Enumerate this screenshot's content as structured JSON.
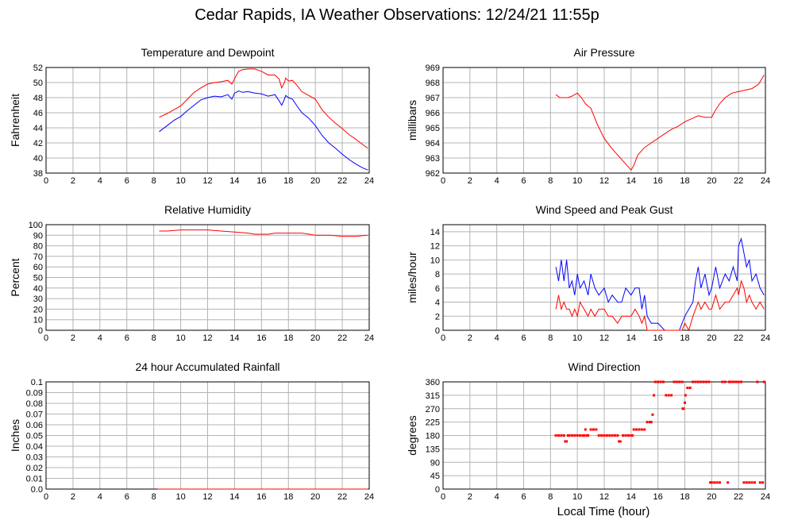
{
  "title": "Cedar Rapids, IA Weather Observations: 12/24/21 11:55p",
  "xlabel": "Local Time (hour)",
  "chart_data": [
    {
      "type": "line",
      "title": "Temperature and Dewpoint",
      "ylabel": "Fahrenheit",
      "xlim": [
        0,
        24
      ],
      "ylim": [
        38,
        52
      ],
      "xticks": [
        0,
        2,
        4,
        6,
        8,
        10,
        12,
        14,
        16,
        18,
        20,
        22,
        24
      ],
      "yticks": [
        38,
        40,
        42,
        44,
        46,
        48,
        50,
        52
      ],
      "series": [
        {
          "color": "#ff0000",
          "x": [
            8.4,
            9,
            9.5,
            10,
            10.5,
            11,
            11.5,
            12,
            12.5,
            13,
            13.5,
            13.8,
            14,
            14.3,
            14.6,
            15,
            15.5,
            16,
            16.5,
            17,
            17.3,
            17.5,
            17.7,
            17.8,
            18,
            18.3,
            18.6,
            19,
            19.5,
            20,
            20.5,
            21,
            21.5,
            22,
            22.5,
            23,
            23.5,
            23.9
          ],
          "y": [
            45.4,
            45.9,
            46.4,
            46.9,
            47.8,
            48.7,
            49.3,
            49.8,
            50.0,
            50.1,
            50.3,
            49.8,
            50.5,
            51.5,
            51.7,
            51.8,
            51.8,
            51.5,
            51.0,
            51.0,
            50.5,
            49.3,
            50.0,
            50.6,
            50.2,
            50.3,
            49.7,
            48.8,
            48.3,
            47.8,
            46.4,
            45.4,
            44.6,
            43.9,
            43.1,
            42.5,
            41.8,
            41.3
          ]
        },
        {
          "color": "#0000ff",
          "x": [
            8.4,
            9,
            9.5,
            10,
            10.5,
            11,
            11.5,
            12,
            12.5,
            13,
            13.5,
            13.8,
            14,
            14.3,
            14.6,
            15,
            15.5,
            16,
            16.5,
            17,
            17.3,
            17.5,
            17.7,
            17.8,
            18,
            18.3,
            18.6,
            19,
            19.5,
            20,
            20.5,
            21,
            21.5,
            22,
            22.5,
            23,
            23.5,
            23.9
          ],
          "y": [
            43.5,
            44.3,
            45.0,
            45.5,
            46.3,
            47.0,
            47.7,
            48.0,
            48.2,
            48.1,
            48.4,
            47.8,
            48.6,
            48.9,
            48.7,
            48.8,
            48.6,
            48.5,
            48.2,
            48.4,
            47.6,
            47.0,
            47.8,
            48.3,
            48.0,
            47.8,
            47.0,
            46.0,
            45.3,
            44.3,
            43.0,
            42.0,
            41.3,
            40.5,
            39.8,
            39.2,
            38.7,
            38.4
          ]
        }
      ]
    },
    {
      "type": "line",
      "title": "Air Pressure",
      "ylabel": "millibars",
      "xlim": [
        0,
        24
      ],
      "ylim": [
        962,
        969
      ],
      "xticks": [
        0,
        2,
        4,
        6,
        8,
        10,
        12,
        14,
        16,
        18,
        20,
        22,
        24
      ],
      "yticks": [
        962,
        963,
        964,
        965,
        966,
        967,
        968,
        969
      ],
      "series": [
        {
          "color": "#ff0000",
          "x": [
            8.4,
            8.7,
            9,
            9.3,
            9.6,
            10,
            10.3,
            10.6,
            11,
            11.5,
            12,
            12.5,
            13,
            13.5,
            14,
            14.2,
            14.5,
            15,
            15.5,
            16,
            16.5,
            17,
            17.5,
            18,
            18.5,
            19,
            19.5,
            20,
            20.3,
            20.6,
            21,
            21.5,
            22,
            22.5,
            23,
            23.5,
            23.9
          ],
          "y": [
            967.2,
            967.0,
            967.0,
            967.0,
            967.1,
            967.3,
            967.0,
            966.6,
            966.3,
            965.2,
            964.3,
            963.7,
            963.2,
            962.7,
            962.2,
            962.5,
            963.2,
            963.7,
            964.0,
            964.3,
            964.6,
            964.9,
            965.1,
            965.4,
            965.6,
            965.8,
            965.7,
            965.7,
            966.2,
            966.6,
            967.0,
            967.3,
            967.4,
            967.5,
            967.6,
            967.9,
            968.5
          ]
        }
      ]
    },
    {
      "type": "line",
      "title": "Relative Humidity",
      "ylabel": "Percent",
      "xlim": [
        0,
        24
      ],
      "ylim": [
        0,
        100
      ],
      "xticks": [
        0,
        2,
        4,
        6,
        8,
        10,
        12,
        14,
        16,
        18,
        20,
        22,
        24
      ],
      "yticks": [
        0,
        10,
        20,
        30,
        40,
        50,
        60,
        70,
        80,
        90,
        100
      ],
      "series": [
        {
          "color": "#ff0000",
          "x": [
            8.4,
            9,
            10,
            11,
            12,
            13,
            14,
            15,
            15.5,
            16,
            16.5,
            17,
            18,
            19,
            20,
            21,
            22,
            22.5,
            23,
            23.9
          ],
          "y": [
            94,
            94,
            95,
            95,
            95,
            94,
            93,
            92,
            91,
            91,
            91,
            92,
            92,
            92,
            90,
            90,
            89,
            89,
            89,
            90
          ]
        }
      ]
    },
    {
      "type": "line",
      "title": "Wind Speed and Peak Gust",
      "ylabel": "miles/hour",
      "xlim": [
        0,
        24
      ],
      "ylim": [
        0,
        15
      ],
      "xticks": [
        0,
        2,
        4,
        6,
        8,
        10,
        12,
        14,
        16,
        18,
        20,
        22,
        24
      ],
      "yticks": [
        0,
        2,
        4,
        6,
        8,
        10,
        12,
        14
      ],
      "series": [
        {
          "color": "#0000ff",
          "x": [
            8.4,
            8.6,
            8.8,
            9,
            9.2,
            9.4,
            9.6,
            9.8,
            10,
            10.2,
            10.5,
            10.8,
            11,
            11.3,
            11.6,
            12,
            12.3,
            12.6,
            13,
            13.3,
            13.6,
            14,
            14.3,
            14.6,
            14.8,
            15,
            15.2,
            15.5,
            16,
            16.5,
            17,
            17.3,
            17.6,
            17.8,
            18,
            18.3,
            18.6,
            18.8,
            19,
            19.2,
            19.5,
            19.8,
            20,
            20.3,
            20.6,
            21,
            21.3,
            21.6,
            21.9,
            22,
            22.2,
            22.4,
            22.6,
            22.8,
            23,
            23.3,
            23.6,
            23.9
          ],
          "y": [
            9,
            7,
            10,
            7,
            10,
            6,
            7,
            5,
            8,
            6,
            7,
            5,
            8,
            6,
            5,
            6,
            4,
            5,
            4,
            4,
            6,
            5,
            6,
            6,
            3,
            5,
            2,
            1,
            1,
            0,
            0,
            0,
            0,
            1,
            2,
            3,
            4,
            7,
            9,
            6,
            8,
            5,
            6,
            9,
            6,
            8,
            7,
            9,
            7,
            12,
            13,
            11,
            9,
            10,
            7,
            8,
            6,
            5
          ]
        },
        {
          "color": "#ff0000",
          "x": [
            8.4,
            8.6,
            8.8,
            9,
            9.2,
            9.4,
            9.6,
            9.8,
            10,
            10.2,
            10.5,
            10.8,
            11,
            11.3,
            11.6,
            12,
            12.3,
            12.6,
            13,
            13.3,
            13.6,
            14,
            14.3,
            14.6,
            14.8,
            15,
            15.2,
            15.5,
            16,
            16.5,
            17,
            17.3,
            17.6,
            17.8,
            18,
            18.3,
            18.6,
            18.8,
            19,
            19.2,
            19.5,
            19.8,
            20,
            20.3,
            20.6,
            21,
            21.3,
            21.6,
            21.9,
            22,
            22.2,
            22.4,
            22.6,
            22.8,
            23,
            23.3,
            23.6,
            23.9
          ],
          "y": [
            3,
            5,
            3,
            4,
            3,
            3,
            2,
            3,
            2,
            4,
            3,
            2,
            3,
            2,
            3,
            3,
            2,
            2,
            1,
            2,
            2,
            2,
            3,
            2,
            1,
            2,
            0,
            0,
            0,
            0,
            0,
            0,
            0,
            0,
            1,
            0,
            2,
            3,
            4,
            3,
            4,
            3,
            3,
            5,
            3,
            4,
            4,
            5,
            6,
            5,
            7,
            6,
            4,
            5,
            4,
            3,
            4,
            3
          ]
        }
      ]
    },
    {
      "type": "line",
      "title": "24 hour Accumulated Rainfall",
      "ylabel": "Inches",
      "xlim": [
        0,
        24
      ],
      "ylim": [
        0,
        0.1
      ],
      "xticks": [
        0,
        2,
        4,
        6,
        8,
        10,
        12,
        14,
        16,
        18,
        20,
        22,
        24
      ],
      "yticks": [
        "0.0",
        "0.01",
        "0.02",
        "0.03",
        "0.04",
        "0.05",
        "0.06",
        "0.07",
        "0.08",
        "0.09",
        "0.1"
      ],
      "series": [
        {
          "color": "#ff0000",
          "x": [
            8.3,
            23.9
          ],
          "y": [
            0.0,
            0.0
          ]
        }
      ]
    },
    {
      "type": "scatter",
      "title": "Wind Direction",
      "ylabel": "degrees",
      "xlim": [
        0,
        24
      ],
      "ylim": [
        0,
        360
      ],
      "xticks": [
        0,
        2,
        4,
        6,
        8,
        10,
        12,
        14,
        16,
        18,
        20,
        22,
        24
      ],
      "yticks": [
        0,
        45,
        90,
        135,
        180,
        225,
        270,
        315,
        360
      ],
      "series": [
        {
          "color": "#ff0000",
          "x": [
            8.4,
            8.6,
            8.8,
            9.0,
            9.1,
            9.2,
            9.3,
            9.4,
            9.6,
            9.8,
            10.0,
            10.2,
            10.4,
            10.5,
            10.6,
            10.7,
            10.8,
            11.0,
            11.2,
            11.4,
            11.6,
            11.8,
            12.0,
            12.2,
            12.4,
            12.6,
            12.8,
            13.0,
            13.1,
            13.2,
            13.4,
            13.6,
            13.8,
            14.0,
            14.1,
            14.2,
            14.4,
            14.6,
            14.8,
            15.0,
            15.2,
            15.4,
            15.5,
            15.6,
            15.7,
            15.8,
            16.0,
            16.2,
            16.4,
            16.6,
            16.8,
            17.0,
            17.2,
            17.4,
            17.6,
            17.8,
            17.85,
            17.9,
            18.0,
            18.05,
            18.2,
            18.4,
            18.6,
            18.8,
            19.0,
            19.2,
            19.4,
            19.6,
            19.8,
            19.9,
            20.0,
            20.2,
            20.4,
            20.6,
            20.8,
            21.0,
            21.2,
            21.3,
            21.4,
            21.6,
            21.8,
            22.0,
            22.2,
            22.4,
            22.6,
            22.8,
            23.0,
            23.2,
            23.4,
            23.6,
            23.8,
            23.9
          ],
          "y": [
            180,
            180,
            180,
            180,
            160,
            160,
            180,
            180,
            180,
            180,
            180,
            180,
            180,
            180,
            200,
            180,
            180,
            200,
            200,
            200,
            180,
            180,
            180,
            180,
            180,
            180,
            180,
            180,
            160,
            160,
            180,
            180,
            180,
            180,
            180,
            200,
            200,
            200,
            200,
            200,
            225,
            225,
            225,
            250,
            315,
            360,
            360,
            360,
            360,
            315,
            315,
            315,
            360,
            360,
            360,
            360,
            270,
            270,
            290,
            315,
            340,
            340,
            360,
            360,
            360,
            360,
            360,
            360,
            360,
            22,
            22,
            22,
            22,
            22,
            360,
            360,
            22,
            360,
            360,
            360,
            360,
            360,
            360,
            22,
            22,
            22,
            22,
            22,
            360,
            22,
            22,
            360
          ]
        }
      ]
    }
  ]
}
